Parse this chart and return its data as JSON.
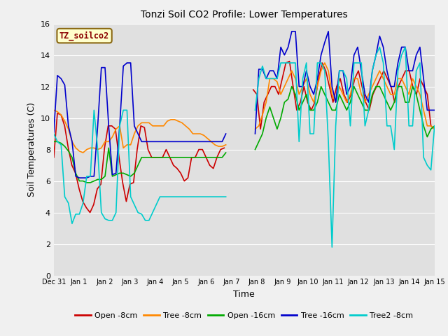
{
  "title": "Tonzi Soil CO2 Profile: Lower Temperatures",
  "xlabel": "Time",
  "ylabel": "Soil Temperatures (C)",
  "ylim": [
    0,
    16
  ],
  "yticks": [
    0,
    2,
    4,
    6,
    8,
    10,
    12,
    14,
    16
  ],
  "label_box": "TZ_soilco2",
  "fig_bg_color": "#f0f0f0",
  "ax_bg_color": "#e0e0e0",
  "grid_color": "#ffffff",
  "series": {
    "Open -8cm": {
      "color": "#cc0000",
      "data": [
        7.5,
        10.3,
        10.2,
        9.5,
        8.1,
        7.0,
        6.5,
        5.5,
        4.7,
        4.3,
        4.0,
        4.5,
        5.5,
        5.8,
        8.1,
        9.5,
        9.5,
        9.3,
        7.5,
        5.9,
        4.7,
        5.8,
        5.9,
        8.0,
        9.5,
        9.4,
        8.0,
        7.5,
        7.5,
        7.5,
        7.5,
        8.0,
        7.5,
        7.0,
        6.8,
        6.5,
        6.0,
        6.2,
        7.5,
        7.5,
        8.0,
        8.0,
        7.5,
        7.0,
        6.8,
        7.5,
        8.0,
        8.1,
        null,
        null,
        null,
        null,
        null,
        null,
        null,
        11.8,
        11.5,
        9.3,
        11.0,
        11.5,
        12.0,
        12.0,
        11.5,
        12.5,
        13.5,
        13.6,
        12.0,
        10.5,
        11.0,
        12.0,
        11.0,
        10.5,
        11.0,
        12.5,
        13.5,
        13.0,
        12.0,
        11.0,
        12.0,
        12.5,
        11.5,
        11.0,
        11.5,
        12.5,
        13.0,
        12.0,
        11.0,
        10.5,
        11.5,
        12.0,
        12.5,
        13.0,
        12.5,
        12.0,
        11.0,
        12.0,
        12.5,
        13.0,
        13.0,
        12.0,
        11.5,
        12.5,
        12.0,
        11.5,
        9.5,
        9.3
      ]
    },
    "Tree -8cm": {
      "color": "#ff8800",
      "data": [
        10.5,
        10.4,
        10.2,
        9.8,
        9.3,
        8.5,
        8.1,
        7.9,
        7.8,
        8.0,
        8.1,
        8.1,
        8.0,
        8.1,
        8.5,
        8.5,
        8.8,
        9.3,
        9.5,
        8.1,
        8.3,
        8.3,
        9.0,
        9.5,
        9.7,
        9.7,
        9.7,
        9.5,
        9.5,
        9.5,
        9.5,
        9.8,
        9.9,
        9.9,
        9.8,
        9.7,
        9.5,
        9.3,
        9.0,
        9.0,
        9.0,
        8.9,
        8.7,
        8.5,
        8.3,
        8.2,
        8.2,
        8.3,
        null,
        null,
        null,
        null,
        null,
        null,
        null,
        9.3,
        9.5,
        10.2,
        11.0,
        12.5,
        12.5,
        12.3,
        11.5,
        12.0,
        12.5,
        13.0,
        12.5,
        11.5,
        12.0,
        12.5,
        11.5,
        11.0,
        12.0,
        13.0,
        13.5,
        13.0,
        11.5,
        11.0,
        12.0,
        11.5,
        11.0,
        11.5,
        12.5,
        12.5,
        11.5,
        11.0,
        11.5,
        12.0,
        12.5,
        13.0,
        12.5,
        12.0,
        11.5,
        11.5,
        12.5,
        12.5,
        12.0,
        11.5,
        12.5,
        12.0,
        11.5,
        10.5,
        9.5,
        9.5,
        9.3
      ]
    },
    "Open -16cm": {
      "color": "#00aa00",
      "data": [
        8.5,
        8.5,
        8.4,
        8.2,
        7.9,
        7.5,
        6.5,
        6.0,
        6.0,
        5.9,
        5.9,
        6.0,
        6.1,
        6.1,
        6.3,
        8.1,
        6.3,
        6.4,
        6.5,
        6.5,
        6.4,
        6.3,
        6.5,
        7.0,
        7.5,
        7.5,
        7.5,
        7.5,
        7.5,
        7.5,
        7.5,
        7.5,
        7.5,
        7.5,
        7.5,
        7.5,
        7.5,
        7.5,
        7.5,
        7.5,
        7.5,
        7.5,
        7.5,
        7.5,
        7.5,
        7.5,
        7.5,
        7.8,
        null,
        null,
        null,
        null,
        null,
        null,
        null,
        8.0,
        8.5,
        9.0,
        10.0,
        10.7,
        10.0,
        9.3,
        10.0,
        11.0,
        11.2,
        12.0,
        11.5,
        10.5,
        11.0,
        11.5,
        10.5,
        10.5,
        11.0,
        12.0,
        11.5,
        11.0,
        10.5,
        10.5,
        11.5,
        11.0,
        10.5,
        11.0,
        12.0,
        11.5,
        11.0,
        10.5,
        10.5,
        11.5,
        12.0,
        12.0,
        11.5,
        11.0,
        10.5,
        11.0,
        12.0,
        12.0,
        11.0,
        11.0,
        12.0,
        11.5,
        10.5,
        9.5,
        8.8,
        9.3,
        9.5
      ]
    },
    "Tree -16cm": {
      "color": "#0000cc",
      "data": [
        9.1,
        12.7,
        12.5,
        12.1,
        9.5,
        8.5,
        6.3,
        6.2,
        6.2,
        6.2,
        6.3,
        6.3,
        9.5,
        13.2,
        13.2,
        9.5,
        6.4,
        6.5,
        9.5,
        13.3,
        13.5,
        13.5,
        9.5,
        9.0,
        8.5,
        8.5,
        8.5,
        8.5,
        8.5,
        8.5,
        8.5,
        8.5,
        8.5,
        8.5,
        8.5,
        8.5,
        8.5,
        8.5,
        8.5,
        8.5,
        8.5,
        8.5,
        8.5,
        8.5,
        8.5,
        8.5,
        8.5,
        9.0,
        null,
        null,
        null,
        null,
        null,
        null,
        null,
        9.0,
        13.1,
        13.1,
        12.5,
        13.0,
        13.0,
        12.5,
        14.5,
        14.0,
        14.5,
        15.5,
        15.5,
        12.0,
        12.0,
        13.0,
        12.0,
        11.5,
        12.5,
        14.0,
        14.8,
        15.5,
        12.0,
        11.0,
        13.0,
        13.0,
        11.5,
        12.0,
        14.0,
        14.5,
        13.0,
        11.5,
        11.0,
        13.0,
        14.0,
        15.2,
        14.5,
        13.0,
        12.0,
        12.0,
        13.5,
        14.5,
        14.5,
        13.0,
        13.0,
        14.0,
        14.5,
        12.5,
        10.5,
        10.5,
        10.5
      ]
    },
    "Tree2 -8cm": {
      "color": "#00cccc",
      "data": [
        9.0,
        8.5,
        8.3,
        5.0,
        4.6,
        3.3,
        3.9,
        3.9,
        4.6,
        6.3,
        6.3,
        10.5,
        8.0,
        4.0,
        3.6,
        3.5,
        3.5,
        4.0,
        9.5,
        10.5,
        10.5,
        5.0,
        4.5,
        4.0,
        3.9,
        3.5,
        3.5,
        4.0,
        4.5,
        5.0,
        5.0,
        5.0,
        5.0,
        5.0,
        5.0,
        5.0,
        5.0,
        5.0,
        5.0,
        5.0,
        5.0,
        5.0,
        5.0,
        5.0,
        5.0,
        5.0,
        5.0,
        5.0,
        null,
        null,
        null,
        null,
        null,
        null,
        null,
        10.5,
        12.5,
        13.3,
        12.5,
        12.5,
        12.5,
        12.5,
        13.5,
        13.5,
        13.5,
        13.5,
        13.5,
        8.5,
        12.5,
        13.5,
        9.0,
        9.0,
        13.5,
        13.5,
        13.0,
        8.5,
        1.8,
        9.5,
        13.0,
        13.0,
        12.5,
        9.5,
        13.5,
        13.5,
        13.5,
        9.5,
        10.5,
        13.0,
        14.0,
        14.5,
        13.5,
        9.5,
        9.5,
        8.0,
        13.0,
        14.0,
        14.5,
        9.5,
        9.5,
        13.0,
        13.5,
        7.5,
        7.0,
        6.7,
        9.5
      ]
    }
  },
  "xtick_labels": [
    "Dec 31",
    "Jan 1",
    "Jan 2",
    "Jan 3",
    "Jan 4",
    "Jan 5",
    "Jan 6",
    "Jan 7",
    "Jan 8",
    "Jan 9",
    "Jan 10",
    "Jan 11",
    "Jan 12",
    "Jan 13",
    "Jan 14",
    "Jan 15"
  ],
  "legend_entries": [
    "Open -8cm",
    "Tree -8cm",
    "Open -16cm",
    "Tree -16cm",
    "Tree2 -8cm"
  ],
  "legend_colors": [
    "#cc0000",
    "#ff8800",
    "#00aa00",
    "#0000cc",
    "#00cccc"
  ]
}
